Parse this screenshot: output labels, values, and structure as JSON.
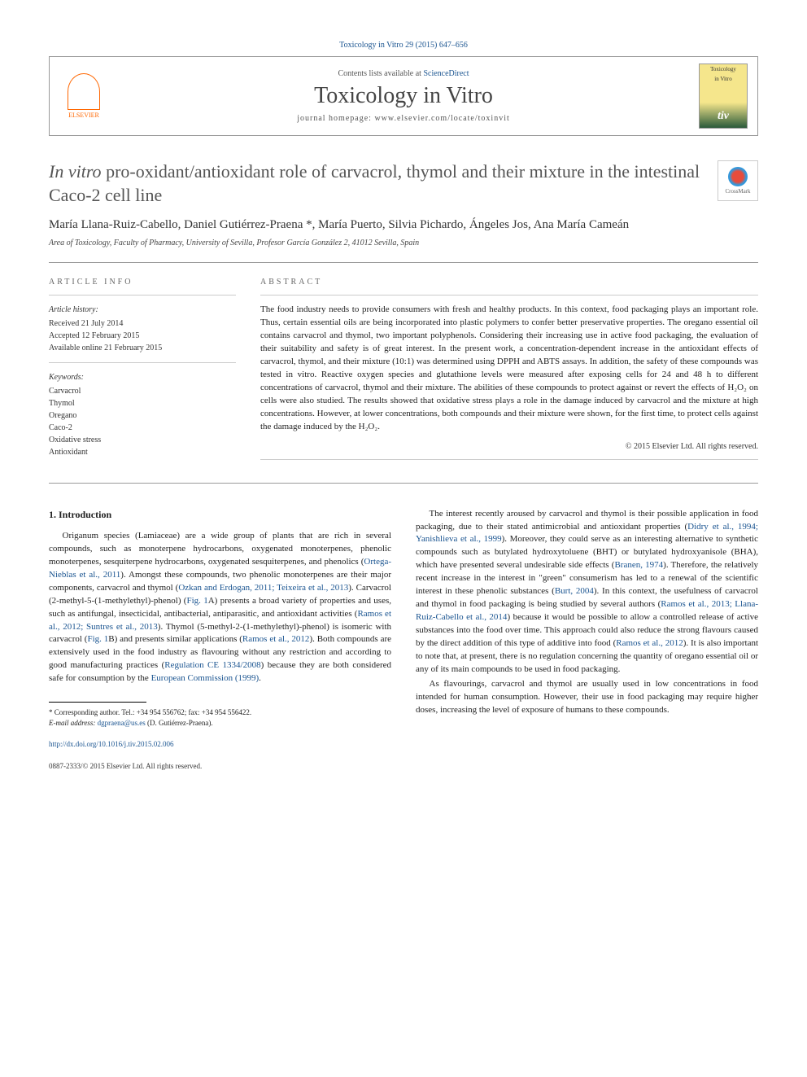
{
  "citation": "Toxicology in Vitro 29 (2015) 647–656",
  "header": {
    "contents_prefix": "Contents lists available at ",
    "contents_link": "ScienceDirect",
    "journal": "Toxicology in Vitro",
    "homepage_prefix": "journal homepage: ",
    "homepage": "www.elsevier.com/locate/toxinvit",
    "publisher": "ELSEVIER",
    "cover_label_top": "Toxicology",
    "cover_label_mid": "in Vitro",
    "cover_logo": "tiv"
  },
  "title": {
    "italic": "In vitro",
    "rest": " pro-oxidant/antioxidant role of carvacrol, thymol and their mixture in the intestinal Caco-2 cell line"
  },
  "crossmark": "CrossMark",
  "authors": "María Llana-Ruiz-Cabello, Daniel Gutiérrez-Praena *, María Puerto, Silvia Pichardo, Ángeles Jos, Ana María Cameán",
  "affiliation": "Area of Toxicology, Faculty of Pharmacy, University of Sevilla, Profesor García González 2, 41012 Sevilla, Spain",
  "article_info": {
    "label": "ARTICLE INFO",
    "history_heading": "Article history:",
    "received": "Received 21 July 2014",
    "accepted": "Accepted 12 February 2015",
    "online": "Available online 21 February 2015",
    "keywords_heading": "Keywords:",
    "keywords": [
      "Carvacrol",
      "Thymol",
      "Oregano",
      "Caco-2",
      "Oxidative stress",
      "Antioxidant"
    ]
  },
  "abstract": {
    "label": "ABSTRACT",
    "text": "The food industry needs to provide consumers with fresh and healthy products. In this context, food packaging plays an important role. Thus, certain essential oils are being incorporated into plastic polymers to confer better preservative properties. The oregano essential oil contains carvacrol and thymol, two important polyphenols. Considering their increasing use in active food packaging, the evaluation of their suitability and safety is of great interest. In the present work, a concentration-dependent increase in the antioxidant effects of carvacrol, thymol, and their mixture (10:1) was determined using DPPH and ABTS assays. In addition, the safety of these compounds was tested in vitro. Reactive oxygen species and glutathione levels were measured after exposing cells for 24 and 48 h to different concentrations of carvacrol, thymol and their mixture. The abilities of these compounds to protect against or revert the effects of H₂O₂ on cells were also studied. The results showed that oxidative stress plays a role in the damage induced by carvacrol and the mixture at high concentrations. However, at lower concentrations, both compounds and their mixture were shown, for the first time, to protect cells against the damage induced by the H₂O₂.",
    "copyright": "© 2015 Elsevier Ltd. All rights reserved."
  },
  "body": {
    "intro_heading": "1. Introduction",
    "col1_p1_a": "Origanum species (Lamiaceae) are a wide group of plants that are rich in several compounds, such as monoterpene hydrocarbons, oxygenated monoterpenes, phenolic monoterpenes, sesquiterpene hydrocarbons, oxygenated sesquiterpenes, and phenolics (",
    "col1_p1_link1": "Ortega-Nieblas et al., 2011",
    "col1_p1_b": "). Amongst these compounds, two phenolic monoterpenes are their major components, carvacrol and thymol (",
    "col1_p1_link2": "Ozkan and Erdogan, 2011; Teixeira et al., 2013",
    "col1_p1_c": "). Carvacrol (2-methyl-5-(1-methylethyl)-phenol) (",
    "col1_p1_link3": "Fig. 1",
    "col1_p1_d": "A) presents a broad variety of properties and uses, such as antifungal, insecticidal, antibacterial, antiparasitic, and antioxidant activities (",
    "col1_p1_link4": "Ramos et al., 2012; Suntres et al., 2013",
    "col1_p1_e": "). Thymol (5-methyl-2-(1-methylethyl)-phenol) is isomeric with carvacrol (",
    "col1_p1_link5": "Fig. 1",
    "col1_p1_f": "B) and presents similar applications (",
    "col1_p1_link6": "Ramos et al., 2012",
    "col1_p1_g": "). Both compounds are extensively used in the food industry as flavouring without any restriction and according to good manufacturing practices (",
    "col1_p1_link7": "Regulation CE 1334/2008",
    "col1_p1_h": ") because they are both considered safe for consumption by the ",
    "col1_p1_link8": "European Commission (1999)",
    "col1_p1_i": ".",
    "col2_p1_a": "The interest recently aroused by carvacrol and thymol is their possible application in food packaging, due to their stated antimicrobial and antioxidant properties (",
    "col2_p1_link1": "Didry et al., 1994; Yanishlieva et al., 1999",
    "col2_p1_b": "). Moreover, they could serve as an interesting alternative to synthetic compounds such as butylated hydroxytoluene (BHT) or butylated hydroxyanisole (BHA), which have presented several undesirable side effects (",
    "col2_p1_link2": "Branen, 1974",
    "col2_p1_c": "). Therefore, the relatively recent increase in the interest in \"green\" consumerism has led to a renewal of the scientific interest in these phenolic substances (",
    "col2_p1_link3": "Burt, 2004",
    "col2_p1_d": "). In this context, the usefulness of carvacrol and thymol in food packaging is being studied by several authors (",
    "col2_p1_link4": "Ramos et al., 2013; Llana-Ruiz-Cabello et al., 2014",
    "col2_p1_e": ") because it would be possible to allow a controlled release of active substances into the food over time. This approach could also reduce the strong flavours caused by the direct addition of this type of additive into food (",
    "col2_p1_link5": "Ramos et al., 2012",
    "col2_p1_f": "). It is also important to note that, at present, there is no regulation concerning the quantity of oregano essential oil or any of its main compounds to be used in food packaging.",
    "col2_p2": "As flavourings, carvacrol and thymol are usually used in low concentrations in food intended for human consumption. However, their use in food packaging may require higher doses, increasing the level of exposure of humans to these compounds."
  },
  "footnote": {
    "corresponding": "* Corresponding author. Tel.: +34 954 556762; fax: +34 954 556422.",
    "email_label": "E-mail address: ",
    "email": "dgpraena@us.es",
    "email_name": " (D. Gutiérrez-Praena)."
  },
  "footer": {
    "doi": "http://dx.doi.org/10.1016/j.tiv.2015.02.006",
    "issn": "0887-2333/© 2015 Elsevier Ltd. All rights reserved."
  },
  "colors": {
    "link": "#1a5490",
    "title_gray": "#555555",
    "elsevier_orange": "#ff6600"
  }
}
